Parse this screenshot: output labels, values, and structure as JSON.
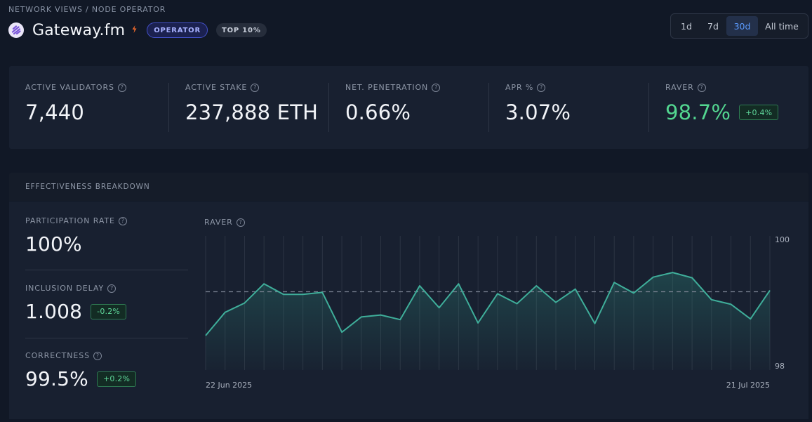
{
  "breadcrumb": "NETWORK VIEWS / NODE OPERATOR",
  "header": {
    "title": "Gateway.fm",
    "badge_operator": "OPERATOR",
    "badge_rank": "TOP 10%"
  },
  "time_range": {
    "options": [
      "1d",
      "7d",
      "30d",
      "All time"
    ],
    "selected": "30d"
  },
  "stats": [
    {
      "label": "ACTIVE VALIDATORS",
      "value": "7,440"
    },
    {
      "label": "ACTIVE STAKE",
      "value": "237,888 ETH"
    },
    {
      "label": "NET. PENETRATION",
      "value": "0.66%"
    },
    {
      "label": "APR %",
      "value": "3.07%"
    },
    {
      "label": "RAVER",
      "value": "98.7%",
      "delta": "+0.4%"
    }
  ],
  "effectiveness": {
    "heading": "EFFECTIVENESS BREAKDOWN",
    "participation": {
      "label": "PARTICIPATION RATE",
      "value": "100%"
    },
    "inclusion_delay": {
      "label": "INCLUSION DELAY",
      "value": "1.008",
      "delta": "-0.2%"
    },
    "correctness": {
      "label": "CORRECTNESS",
      "value": "99.5%",
      "delta": "+0.2%"
    },
    "chart_label": "RAVER"
  },
  "colors": {
    "accent": "#5b9bff",
    "positive": "#53d690",
    "line": "#3fae9a",
    "operator_badge": "#4350c8"
  },
  "chart_data": {
    "type": "line",
    "title": "RAVER",
    "xlabel": "",
    "ylabel": "",
    "x_tick_labels": [
      "22 Jun 2025",
      "21 Jul 2025"
    ],
    "y_tick_labels": [
      "100",
      "98"
    ],
    "ylim": [
      98,
      100
    ],
    "reference_line": 99.18,
    "series": [
      {
        "name": "RAVER",
        "values": [
          98.52,
          98.87,
          99.01,
          99.3,
          99.14,
          99.14,
          99.17,
          98.57,
          98.8,
          98.83,
          98.76,
          99.27,
          98.94,
          99.3,
          98.71,
          99.15,
          99.0,
          99.27,
          99.02,
          99.22,
          98.7,
          99.32,
          99.16,
          99.4,
          99.47,
          99.39,
          99.06,
          98.99,
          98.77,
          99.2
        ]
      }
    ]
  }
}
